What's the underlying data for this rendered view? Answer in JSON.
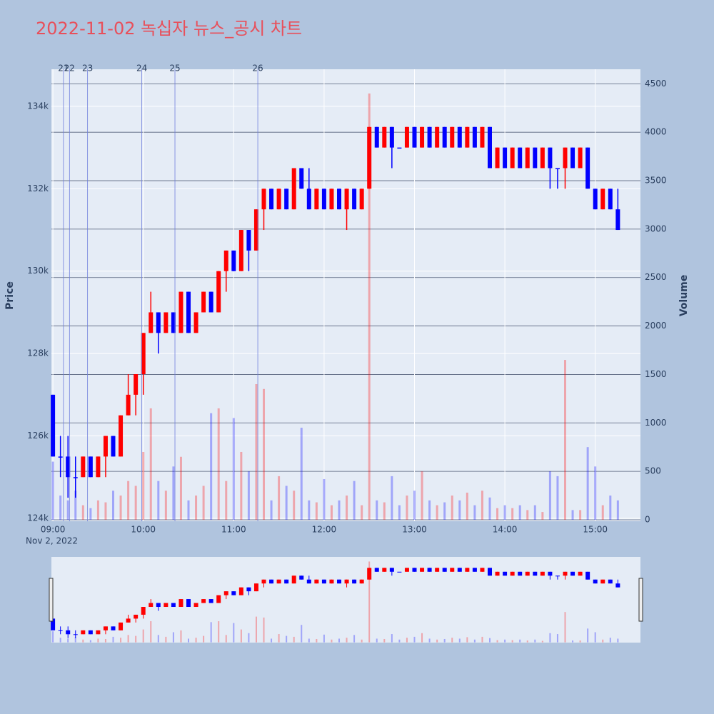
{
  "chart_data": {
    "type": "candlestick",
    "title": "2022-11-02 녹십자 뉴스_공시 차트",
    "y_label": "Price",
    "y2_label": "Volume",
    "x_date_label": "Nov 2, 2022",
    "increasing_color": "#ff0000",
    "decreasing_color": "#0000ff",
    "annotation_color": "#6f7fdc",
    "xlim": [
      "08:59",
      "15:30"
    ],
    "xticks": [
      "09:00",
      "10:00",
      "11:00",
      "12:00",
      "13:00",
      "14:00",
      "15:00"
    ],
    "ylim": [
      123930,
      134900
    ],
    "yticks": [
      {
        "value": 124000,
        "label": "124k"
      },
      {
        "value": 126000,
        "label": "126k"
      },
      {
        "value": 128000,
        "label": "128k"
      },
      {
        "value": 130000,
        "label": "130k"
      },
      {
        "value": 132000,
        "label": "132k"
      },
      {
        "value": 134000,
        "label": "134k"
      }
    ],
    "y2lim": [
      -15,
      4650
    ],
    "y2ticks": [
      0,
      500,
      1000,
      1500,
      2000,
      2500,
      3000,
      3500,
      4000,
      4500
    ],
    "annotations": [
      {
        "x": "09:07",
        "label": "21"
      },
      {
        "x": "09:11",
        "label": "22"
      },
      {
        "x": "09:23",
        "label": "23"
      },
      {
        "x": "09:59",
        "label": "24"
      },
      {
        "x": "10:21",
        "label": "25"
      },
      {
        "x": "11:16",
        "label": "26"
      }
    ],
    "x": [
      "09:00",
      "09:05",
      "09:10",
      "09:15",
      "09:20",
      "09:25",
      "09:30",
      "09:35",
      "09:40",
      "09:45",
      "09:50",
      "09:55",
      "10:00",
      "10:05",
      "10:10",
      "10:15",
      "10:20",
      "10:25",
      "10:30",
      "10:35",
      "10:40",
      "10:45",
      "10:50",
      "10:55",
      "11:00",
      "11:05",
      "11:10",
      "11:15",
      "11:20",
      "11:25",
      "11:30",
      "11:35",
      "11:40",
      "11:45",
      "11:50",
      "11:55",
      "12:00",
      "12:05",
      "12:10",
      "12:15",
      "12:20",
      "12:25",
      "12:30",
      "12:35",
      "12:40",
      "12:45",
      "12:50",
      "12:55",
      "13:00",
      "13:05",
      "13:10",
      "13:15",
      "13:20",
      "13:25",
      "13:30",
      "13:35",
      "13:40",
      "13:45",
      "13:50",
      "13:55",
      "14:00",
      "14:05",
      "14:10",
      "14:15",
      "14:20",
      "14:25",
      "14:30",
      "14:35",
      "14:40",
      "14:45",
      "14:50",
      "14:55",
      "15:00",
      "15:05",
      "15:10",
      "15:15"
    ],
    "open": [
      127000,
      125500,
      125500,
      125000,
      125000,
      125500,
      125000,
      125500,
      126000,
      125500,
      126500,
      127000,
      127500,
      128500,
      129000,
      128500,
      129000,
      128500,
      129500,
      128500,
      129000,
      129500,
      129000,
      130000,
      130500,
      130000,
      131000,
      130500,
      131500,
      132000,
      131500,
      132000,
      131500,
      132500,
      132000,
      131500,
      132000,
      131500,
      132000,
      131500,
      132000,
      131500,
      132000,
      133500,
      133000,
      133500,
      133000,
      133000,
      133500,
      133000,
      133500,
      133000,
      133500,
      133000,
      133500,
      133000,
      133500,
      133000,
      133500,
      132500,
      133000,
      132500,
      133000,
      132500,
      133000,
      132500,
      133000,
      132500,
      132500,
      133000,
      132500,
      133000,
      132000,
      131500,
      132000,
      131500
    ],
    "high": [
      127000,
      126000,
      126000,
      125500,
      125500,
      125500,
      125500,
      126000,
      126000,
      126500,
      127500,
      127500,
      128500,
      129500,
      129000,
      129000,
      129000,
      129500,
      129500,
      129000,
      129500,
      129500,
      130000,
      130500,
      130500,
      131000,
      131000,
      131500,
      132000,
      132000,
      132000,
      132000,
      132500,
      132500,
      132500,
      132000,
      132000,
      132000,
      132000,
      132000,
      132000,
      132000,
      133500,
      133500,
      133500,
      133500,
      133000,
      133500,
      133500,
      133500,
      133500,
      133500,
      133500,
      133500,
      133500,
      133500,
      133500,
      133500,
      133500,
      133000,
      133000,
      133000,
      133000,
      133000,
      133000,
      133000,
      133000,
      132500,
      133000,
      133000,
      133000,
      133000,
      132000,
      132000,
      132000,
      132000
    ],
    "low": [
      125500,
      125000,
      124500,
      124500,
      125000,
      125000,
      125000,
      125000,
      125500,
      125500,
      126500,
      126500,
      127000,
      128500,
      128000,
      128500,
      128500,
      128500,
      128500,
      128500,
      129000,
      129000,
      129000,
      129500,
      130000,
      130000,
      130000,
      130500,
      131000,
      131500,
      131500,
      131500,
      131500,
      132000,
      131500,
      131500,
      131500,
      131500,
      131500,
      131000,
      131500,
      131500,
      132000,
      133000,
      133000,
      132500,
      133000,
      133000,
      133000,
      133000,
      133000,
      133000,
      133000,
      133000,
      133000,
      133000,
      133000,
      133000,
      132500,
      132500,
      132500,
      132500,
      132500,
      132500,
      132500,
      132500,
      132000,
      132000,
      132000,
      132500,
      132500,
      132000,
      131500,
      131500,
      131500,
      131000
    ],
    "close": [
      125500,
      125500,
      125000,
      125000,
      125500,
      125000,
      125500,
      126000,
      125500,
      126500,
      127000,
      127500,
      128500,
      129000,
      128500,
      129000,
      128500,
      129500,
      128500,
      129000,
      129500,
      129000,
      130000,
      130500,
      130000,
      131000,
      130500,
      131500,
      132000,
      131500,
      132000,
      131500,
      132500,
      132000,
      131500,
      132000,
      131500,
      132000,
      131500,
      132000,
      131500,
      132000,
      133500,
      133000,
      133500,
      133000,
      133000,
      133500,
      133000,
      133500,
      133000,
      133500,
      133000,
      133500,
      133000,
      133500,
      133000,
      133500,
      132500,
      133000,
      132500,
      133000,
      132500,
      133000,
      132500,
      133000,
      132500,
      132500,
      133000,
      132500,
      133000,
      132000,
      131500,
      132000,
      131500,
      131000
    ],
    "volume": [
      600,
      250,
      200,
      300,
      150,
      120,
      200,
      180,
      300,
      250,
      400,
      350,
      700,
      1150,
      400,
      300,
      550,
      650,
      200,
      250,
      350,
      1100,
      1150,
      400,
      1050,
      700,
      500,
      1400,
      1350,
      200,
      450,
      350,
      300,
      950,
      200,
      180,
      420,
      150,
      200,
      250,
      400,
      150,
      4400,
      200,
      180,
      450,
      150,
      250,
      300,
      500,
      200,
      150,
      180,
      250,
      200,
      280,
      150,
      300,
      230,
      120,
      150,
      120,
      150,
      100,
      150,
      80,
      500,
      450,
      1650,
      100,
      100,
      750,
      550,
      150,
      250,
      200
    ]
  }
}
